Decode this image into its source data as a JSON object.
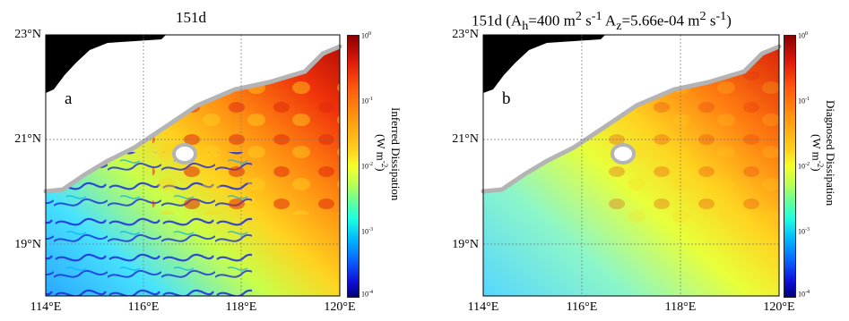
{
  "panels": [
    {
      "title": "151d",
      "letter": "a",
      "colorbar_label": "Inferred Dissipation",
      "colorbar_unit": "(W m-2)"
    },
    {
      "title": "151d (Ah=400 m2 s-1 Az=5.66e-04 m2 s-1)",
      "letter": "b",
      "colorbar_label": "Diagnosed Dissipation",
      "colorbar_unit": "(W m-2)"
    }
  ],
  "lat_ticks": [
    "23°N",
    "21°N",
    "19°N"
  ],
  "lon_ticks": [
    "114°E",
    "116°E",
    "118°E",
    "120°E"
  ],
  "colorbar_ticks": [
    "10^0",
    "10^-1",
    "10^-2",
    "10^-3",
    "10^-4"
  ],
  "colors": {
    "land": "#000000",
    "coast_line": "#b4b4b4",
    "high": "#d7190b",
    "mid": "#f4ff2a",
    "low": "#1010d8"
  }
}
